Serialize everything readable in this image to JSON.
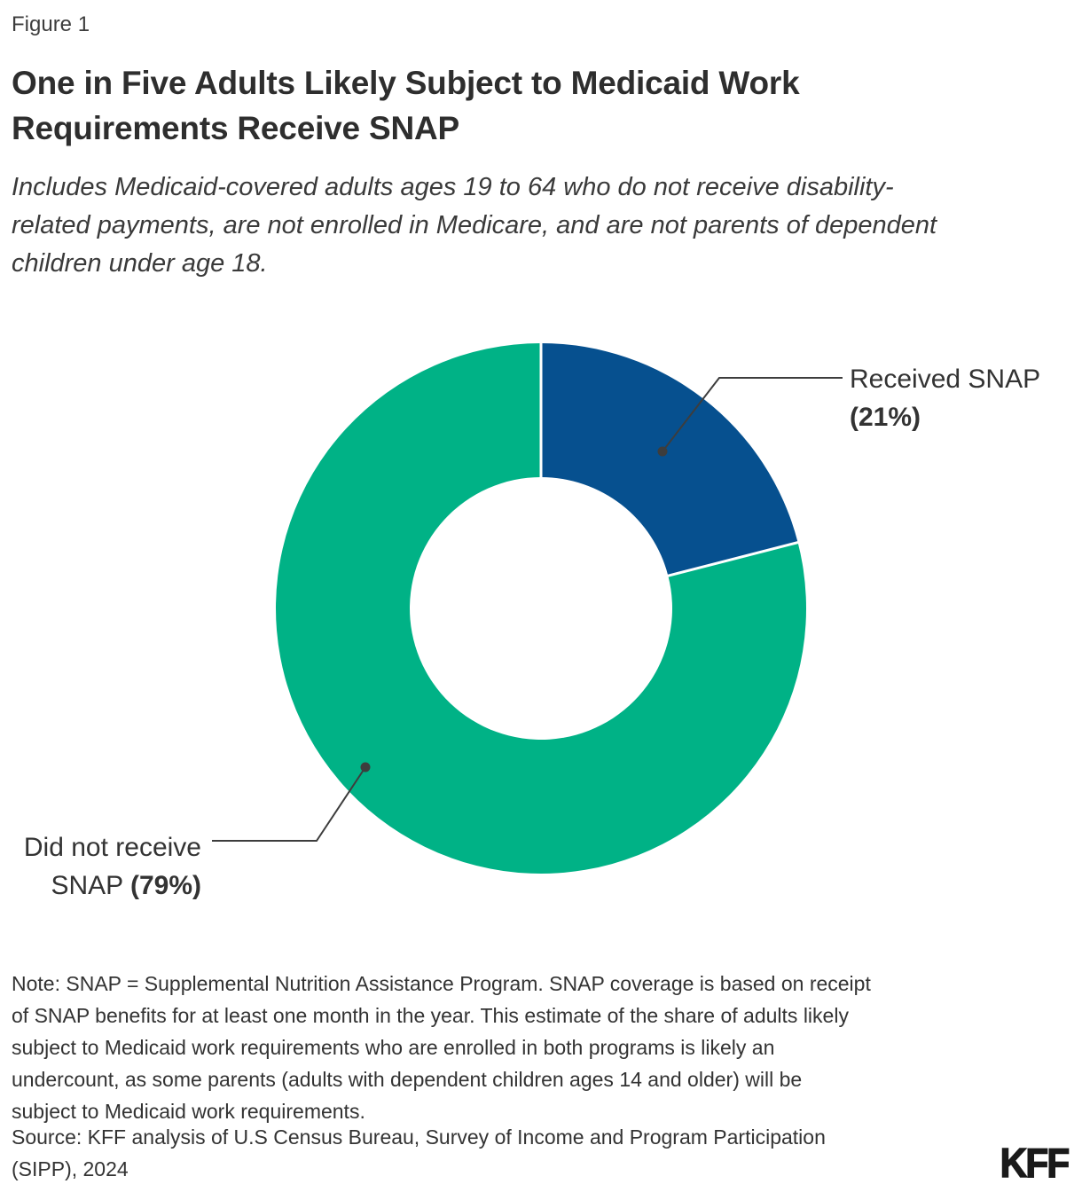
{
  "figure_label": "Figure 1",
  "title_lines": [
    "One in Five Adults Likely Subject to Medicaid Work",
    "Requirements Receive SNAP"
  ],
  "subtitle_lines": [
    "Includes Medicaid-covered adults ages 19 to 64 who do not receive disability-",
    "related payments, are not enrolled in Medicare, and are not parents of dependent",
    "children under age 18."
  ],
  "chart_data": {
    "type": "pie",
    "subtype": "donut",
    "title": "One in Five Adults Likely Subject to Medicaid Work Requirements Receive SNAP",
    "categories": [
      "Received SNAP",
      "Did not receive SNAP"
    ],
    "values": [
      21,
      79
    ],
    "unit": "percent",
    "colors": [
      "#06508f",
      "#00b286"
    ],
    "start_angle_deg": 0,
    "direction": "clockwise",
    "inner_radius_ratio": 0.495,
    "separator_color": "#ffffff",
    "legend_position": "none",
    "data_labels": [
      "Received SNAP (21%)",
      "Did not receive SNAP (79%)"
    ]
  },
  "callouts": {
    "received": {
      "line1": "Received SNAP",
      "line2_bold": "(21%)"
    },
    "not_received": {
      "line1": "Did not receive",
      "line2_regular": "SNAP ",
      "line2_bold": "(79%)"
    }
  },
  "note_lines": [
    "Note: SNAP = Supplemental Nutrition Assistance Program. SNAP coverage is based on receipt",
    "of SNAP benefits for at least one month in the year. This estimate of the share of adults likely",
    "subject to Medicaid work requirements who are enrolled in both programs is likely an",
    "undercount, as some parents (adults with dependent children ages 14 and older) will be",
    "subject to Medicaid work requirements."
  ],
  "source_lines": [
    "Source: KFF analysis of U.S Census Bureau, Survey of Income and Program Participation",
    "(SIPP), 2024"
  ],
  "logo_text": "KFF",
  "colors": {
    "background": "#ffffff",
    "text": "#333333",
    "leader_line": "#3d3d3d",
    "slice_blue": "#06508f",
    "slice_green": "#00b286"
  }
}
